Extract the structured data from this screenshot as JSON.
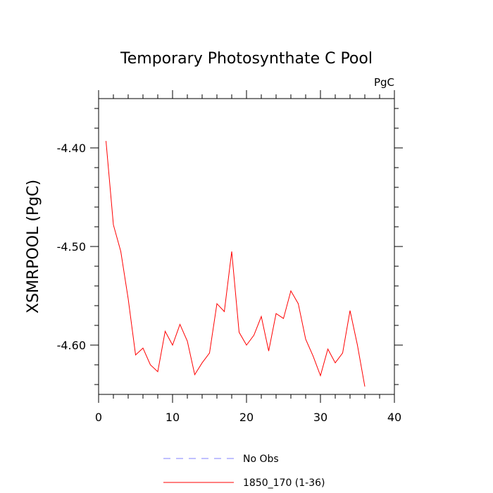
{
  "chart_data": {
    "type": "line",
    "title": "Temporary Photosynthate C Pool",
    "units_label": "PgC",
    "xlabel": "",
    "ylabel": "XSMRPOOL  (PgC)",
    "xlim": [
      0,
      40
    ],
    "ylim": [
      -4.65,
      -4.35
    ],
    "x_ticks": [
      0,
      10,
      20,
      30,
      40
    ],
    "x_tick_labels": [
      "0",
      "10",
      "20",
      "30",
      "40"
    ],
    "y_ticks": [
      -4.6,
      -4.5,
      -4.4
    ],
    "y_tick_labels": [
      "-4.60",
      "-4.50",
      "-4.40"
    ],
    "grid": false,
    "legend_position": "bottom",
    "series": [
      {
        "name": "1850_170 (1-36)",
        "color": "#ff0000",
        "style": "solid",
        "x": [
          1,
          2,
          3,
          4,
          5,
          6,
          7,
          8,
          9,
          10,
          11,
          12,
          13,
          14,
          15,
          16,
          17,
          18,
          19,
          20,
          21,
          22,
          23,
          24,
          25,
          26,
          27,
          28,
          29,
          30,
          31,
          32,
          33,
          34,
          35,
          36
        ],
        "y": [
          -4.393,
          -4.478,
          -4.505,
          -4.553,
          -4.61,
          -4.603,
          -4.62,
          -4.627,
          -4.586,
          -4.6,
          -4.579,
          -4.596,
          -4.63,
          -4.618,
          -4.608,
          -4.558,
          -4.566,
          -4.505,
          -4.587,
          -4.6,
          -4.59,
          -4.571,
          -4.606,
          -4.568,
          -4.573,
          -4.545,
          -4.558,
          -4.594,
          -4.611,
          -4.631,
          -4.604,
          -4.618,
          -4.608,
          -4.565,
          -4.6,
          -4.642
        ]
      },
      {
        "name": "No Obs",
        "color": "#8080ff",
        "style": "dashed",
        "x": [],
        "y": []
      }
    ]
  }
}
